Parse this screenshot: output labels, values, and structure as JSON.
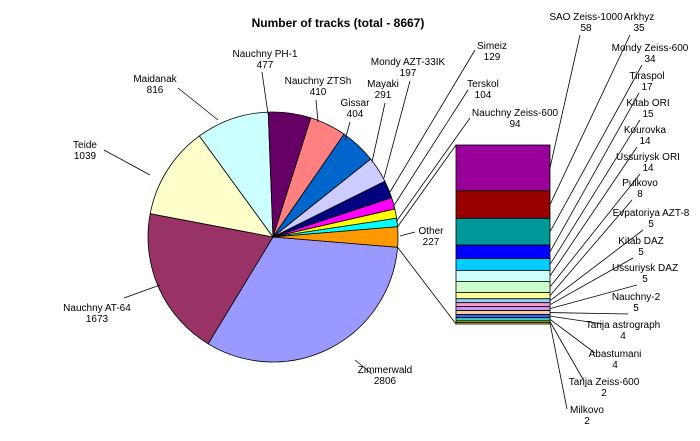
{
  "chart_data": {
    "type": "pie",
    "title": "Number of tracks (total - 8667)",
    "slices": [
      {
        "label": "Zimmerwald",
        "value": 2806,
        "color": "#9999ff"
      },
      {
        "label": "Nauchny AT-64",
        "value": 1673,
        "color": "#993366"
      },
      {
        "label": "Teide",
        "value": 1039,
        "color": "#ffffcc"
      },
      {
        "label": "Maidanak",
        "value": 816,
        "color": "#ccffff"
      },
      {
        "label": "Nauchny PH-1",
        "value": 477,
        "color": "#660066"
      },
      {
        "label": "Nauchny ZTSh",
        "value": 410,
        "color": "#ff8080"
      },
      {
        "label": "Gissar",
        "value": 404,
        "color": "#0066cc"
      },
      {
        "label": "Mayaki",
        "value": 291,
        "color": "#ccccff"
      },
      {
        "label": "Mondy AZT-33IK",
        "value": 197,
        "color": "#000080"
      },
      {
        "label": "Simeiz",
        "value": 129,
        "color": "#ff00ff"
      },
      {
        "label": "Terskol",
        "value": 104,
        "color": "#ffff00"
      },
      {
        "label": "Nauchny Zeiss-600",
        "value": 94,
        "color": "#00ffff"
      },
      {
        "label": "Other",
        "value": 227,
        "color": "#ff9900"
      }
    ],
    "other_breakdown": [
      {
        "label": "SAO Zeiss-1000",
        "value": 58,
        "color": "#990099"
      },
      {
        "label": "Arkhyz",
        "value": 35,
        "color": "#990000"
      },
      {
        "label": "Mondy Zeiss-600",
        "value": 34,
        "color": "#009999"
      },
      {
        "label": "Tiraspol",
        "value": 17,
        "color": "#0000ff"
      },
      {
        "label": "Kitab ORI",
        "value": 15,
        "color": "#00ccff"
      },
      {
        "label": "Kourovka",
        "value": 14,
        "color": "#ccffff"
      },
      {
        "label": "Ussuriysk ORI",
        "value": 14,
        "color": "#ccffcc"
      },
      {
        "label": "Pulkovo",
        "value": 8,
        "color": "#ffff99"
      },
      {
        "label": "Evpatoriya AZT-8",
        "value": 5,
        "color": "#99ccff"
      },
      {
        "label": "Kitab DAZ",
        "value": 5,
        "color": "#ff99cc"
      },
      {
        "label": "Ussuriysk DAZ",
        "value": 5,
        "color": "#cc99ff"
      },
      {
        "label": "Nauchny-2",
        "value": 5,
        "color": "#ffcc99"
      },
      {
        "label": "Tarija astrograph",
        "value": 4,
        "color": "#3366ff"
      },
      {
        "label": "Abastumani",
        "value": 4,
        "color": "#33cccc"
      },
      {
        "label": "Tarija Zeiss-600",
        "value": 2,
        "color": "#99cc00"
      },
      {
        "label": "Milkovo",
        "value": 2,
        "color": "#ffcc00"
      }
    ]
  }
}
